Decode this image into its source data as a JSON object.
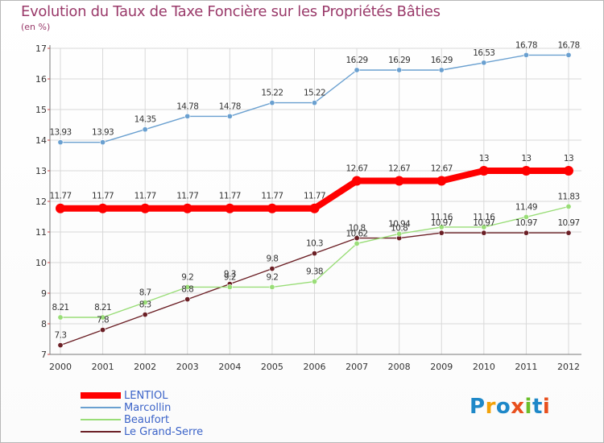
{
  "title": "Evolution du Taux de Taxe Foncière sur les Propriétés Bâties",
  "subtitle": "(en %)",
  "colors": {
    "LENTIOL": "#ff0000",
    "Marcollin": "#6aa0d0",
    "Beaufort": "#99dd77",
    "Le Grand-Serre": "#6b1f25",
    "grid": "#d8d8d8",
    "axis_text": "#333333"
  },
  "logo": {
    "text": "Proxiti",
    "colors": [
      "#1e88c8",
      "#f2a20a",
      "#1e88c8",
      "#e8501e",
      "#6bbf2a",
      "#1e88c8",
      "#e8501e"
    ]
  },
  "chart_data": {
    "type": "line",
    "x": [
      "2000",
      "2001",
      "2002",
      "2003",
      "2004",
      "2005",
      "2006",
      "2007",
      "2008",
      "2009",
      "2010",
      "2011",
      "2012"
    ],
    "ylim": [
      7,
      17
    ],
    "yticks": [
      7,
      8,
      9,
      10,
      11,
      12,
      13,
      14,
      15,
      16,
      17
    ],
    "xlabel": "",
    "ylabel": "(en %)",
    "grid": true,
    "legend_position": "bottom-left",
    "series": [
      {
        "name": "LENTIOL",
        "values": [
          11.77,
          11.77,
          11.77,
          11.77,
          11.77,
          11.77,
          11.77,
          12.67,
          12.67,
          12.67,
          13,
          13,
          13
        ],
        "labels": [
          "11.77",
          "11.77",
          "11.77",
          "11.77",
          "11.77",
          "11.77",
          "11.77",
          "12.67",
          "12.67",
          "12.67",
          "13",
          "13",
          "13"
        ]
      },
      {
        "name": "Marcollin",
        "values": [
          13.93,
          13.93,
          14.35,
          14.78,
          14.78,
          15.22,
          15.22,
          16.29,
          16.29,
          16.29,
          16.53,
          16.78,
          16.78
        ],
        "labels": [
          "13.93",
          "13.93",
          "14.35",
          "14.78",
          "14.78",
          "15.22",
          "15.22",
          "16.29",
          "16.29",
          "16.29",
          "16.53",
          "16.78",
          "16.78"
        ]
      },
      {
        "name": "Beaufort",
        "values": [
          8.21,
          8.21,
          8.7,
          9.2,
          9.2,
          9.2,
          9.38,
          10.62,
          10.94,
          11.16,
          11.16,
          11.49,
          11.83
        ],
        "labels": [
          "8.21",
          "8.21",
          "8.7",
          "9.2",
          "9.2",
          "9.2",
          "9.38",
          "10.62",
          "10.94",
          "11.16",
          "11.16",
          "11.49",
          "11.83"
        ]
      },
      {
        "name": "Le Grand-Serre",
        "values": [
          7.3,
          7.8,
          8.3,
          8.8,
          9.3,
          9.8,
          10.3,
          10.8,
          10.8,
          10.97,
          10.97,
          10.97,
          10.97
        ],
        "labels": [
          "7.3",
          "7.8",
          "8.3",
          "8.8",
          "9.3",
          "9.8",
          "10.3",
          "10.8",
          "10.8",
          "10.97",
          "10.97",
          "10.97",
          "10.97"
        ]
      }
    ]
  }
}
